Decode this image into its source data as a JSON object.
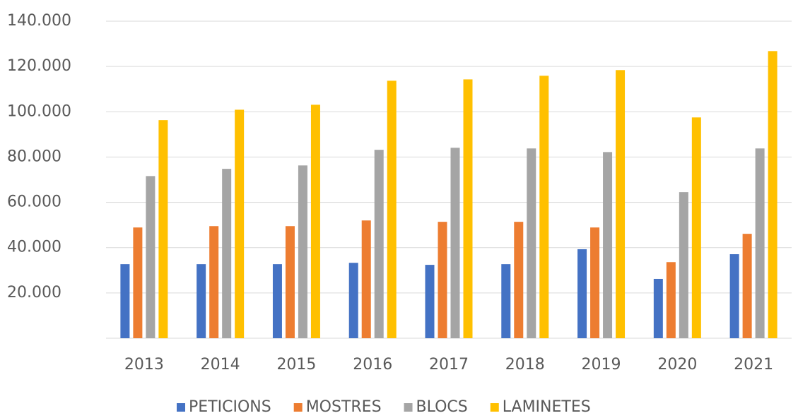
{
  "chart_data": {
    "type": "bar",
    "categories": [
      "2013",
      "2014",
      "2015",
      "2016",
      "2017",
      "2018",
      "2019",
      "2020",
      "2021"
    ],
    "series": [
      {
        "name": "PETICIONS",
        "color": "#4472c4",
        "values": [
          32700,
          32700,
          32700,
          33300,
          32400,
          32700,
          39300,
          26200,
          37100
        ]
      },
      {
        "name": "MOSTRES",
        "color": "#ed7d31",
        "values": [
          48900,
          49500,
          49500,
          52000,
          51400,
          51400,
          48900,
          33600,
          46100
        ]
      },
      {
        "name": "BLOCS",
        "color": "#a5a5a5",
        "values": [
          71600,
          74800,
          76300,
          83200,
          84100,
          83800,
          82200,
          64500,
          83800
        ]
      },
      {
        "name": "LAMINETES",
        "color": "#ffc000",
        "values": [
          96300,
          100900,
          103100,
          113700,
          114300,
          115900,
          118400,
          97500,
          126800
        ]
      }
    ],
    "ylim": [
      0,
      140000
    ],
    "yticks": [
      {
        "value": 20000,
        "label": "20.000"
      },
      {
        "value": 40000,
        "label": "40.000"
      },
      {
        "value": 60000,
        "label": "60.000"
      },
      {
        "value": 80000,
        "label": "80.000"
      },
      {
        "value": 100000,
        "label": "100.000"
      },
      {
        "value": 120000,
        "label": "120.000"
      },
      {
        "value": 140000,
        "label": "140.000"
      }
    ],
    "grid": true,
    "legend": "bottom"
  }
}
